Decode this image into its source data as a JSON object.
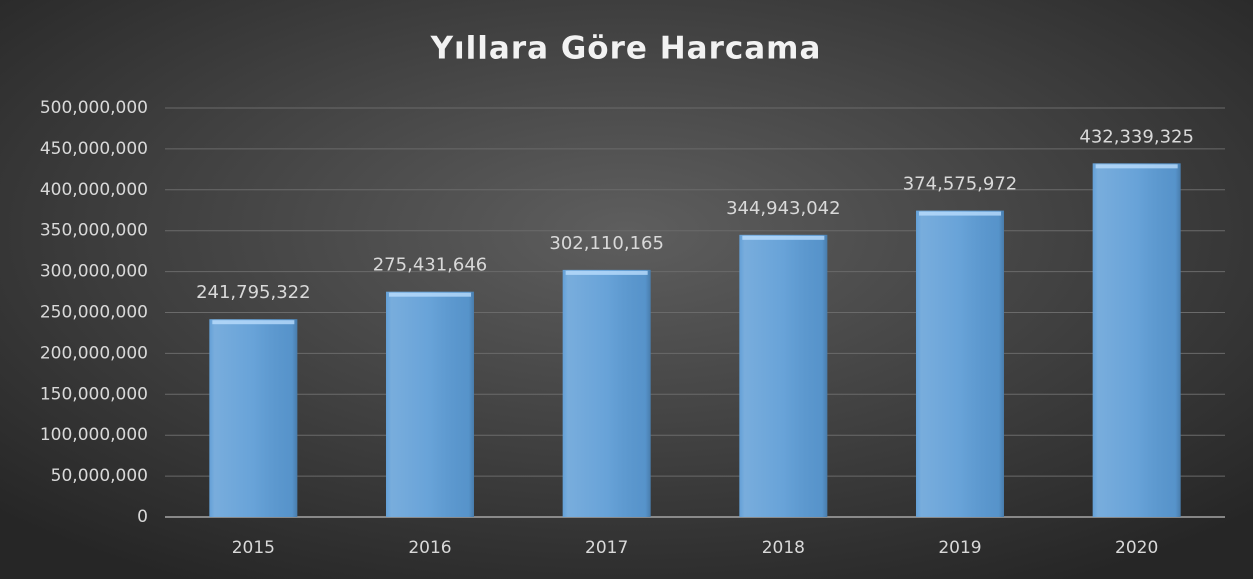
{
  "chart_data": {
    "type": "bar",
    "title": "Yıllara Göre Harcama",
    "categories": [
      "2015",
      "2016",
      "2017",
      "2018",
      "2019",
      "2020"
    ],
    "values": [
      241795322,
      275431646,
      302110165,
      344943042,
      374575972,
      432339325
    ],
    "value_labels": [
      "241,795,322",
      "275,431,646",
      "302,110,165",
      "344,943,042",
      "374,575,972",
      "432,339,325"
    ],
    "color": "#5b9bd5",
    "ylim": [
      0,
      500000000
    ],
    "yticks": [
      0,
      {
        "value": 50000000,
        "label": "50,000,000"
      },
      {
        "value": 100000000,
        "label": "100,000,000"
      },
      {
        "value": 150000000,
        "label": "150,000,000"
      },
      {
        "value": 200000000,
        "label": "200,000,000"
      },
      {
        "value": 250000000,
        "label": "250,000,000"
      },
      {
        "value": 300000000,
        "label": "300,000,000"
      },
      {
        "value": 350000000,
        "label": "350,000,000"
      },
      {
        "value": 400000000,
        "label": "400,000,000"
      },
      {
        "value": 450000000,
        "label": "450,000,000"
      },
      {
        "value": 500000000,
        "label": "500,000,000"
      }
    ],
    "grid": true
  }
}
